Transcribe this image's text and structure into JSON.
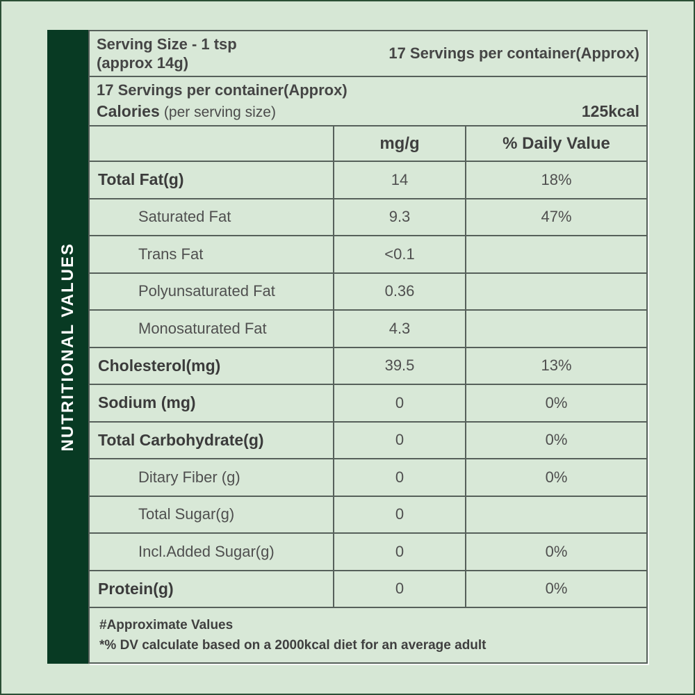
{
  "sidebar": {
    "title": "NUTRITIONAL VALUES"
  },
  "header": {
    "serving_size_line1": "Serving Size - 1 tsp",
    "serving_size_line2": "(approx 14g)",
    "servings_right": "17 Servings per container(Approx)",
    "servings_line": "17 Servings per container(Approx)",
    "calories_label": "Calories",
    "calories_sub": "(per serving size)",
    "calories_value": "125kcal"
  },
  "table": {
    "columns": [
      "",
      "mg/g",
      "% Daily Value"
    ],
    "rows": [
      {
        "label": "Total Fat(g)",
        "value": "14",
        "dv": "18%",
        "bold": true
      },
      {
        "label": "Saturated Fat",
        "value": "9.3",
        "dv": "47%",
        "bold": false
      },
      {
        "label": "Trans Fat",
        "value": "<0.1",
        "dv": "",
        "bold": false
      },
      {
        "label": "Polyunsaturated Fat",
        "value": "0.36",
        "dv": "",
        "bold": false
      },
      {
        "label": "Monosaturated Fat",
        "value": "4.3",
        "dv": "",
        "bold": false
      },
      {
        "label": "Cholesterol(mg)",
        "value": "39.5",
        "dv": "13%",
        "bold": true
      },
      {
        "label": "Sodium (mg)",
        "value": "0",
        "dv": "0%",
        "bold": true
      },
      {
        "label": "Total Carbohydrate(g)",
        "value": "0",
        "dv": "0%",
        "bold": true
      },
      {
        "label": "Ditary Fiber (g)",
        "value": "0",
        "dv": "0%",
        "bold": false
      },
      {
        "label": "Total Sugar(g)",
        "value": "0",
        "dv": "",
        "bold": false
      },
      {
        "label": "Incl.Added Sugar(g)",
        "value": "0",
        "dv": "0%",
        "bold": false
      },
      {
        "label": "Protein(g)",
        "value": "0",
        "dv": "0%",
        "bold": true
      }
    ]
  },
  "footer": {
    "line1": "#Approximate Values",
    "line2": "*% DV calculate based on a 2000kcal diet for an average adult"
  },
  "colors": {
    "background": "#d6e7d5",
    "sidebar_green": "#083a23",
    "frame_border": "#2b4f35",
    "grid_border": "#56605a",
    "text": "#4a4a4a",
    "sidebar_text": "#ffffff"
  }
}
